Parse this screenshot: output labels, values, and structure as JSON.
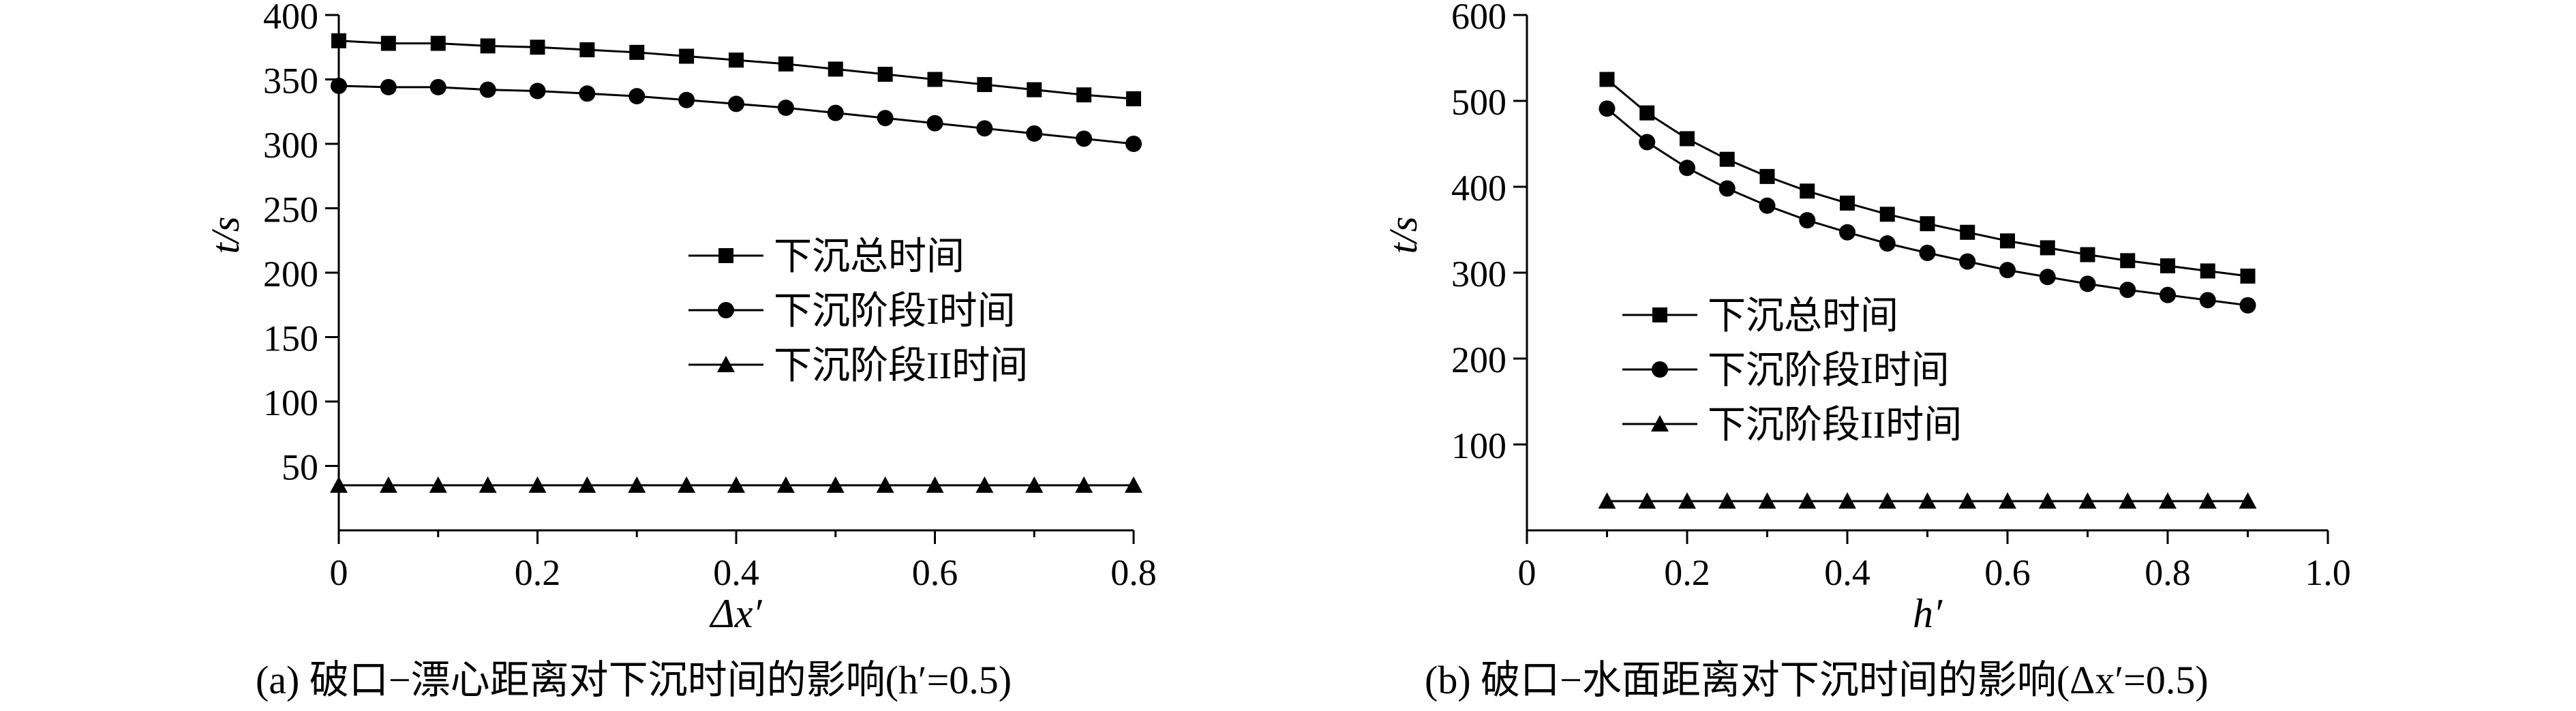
{
  "chart_data": [
    {
      "type": "line",
      "panel": "a",
      "xlabel": "Δx′",
      "ylabel": "t/s",
      "xlim": [
        0,
        0.8
      ],
      "ylim": [
        0,
        400
      ],
      "xticks": [
        0,
        0.2,
        0.4,
        0.6,
        0.8
      ],
      "xtick_labels": [
        "0",
        "0.2",
        "0.4",
        "0.6",
        "0.8"
      ],
      "yticks": [
        50,
        100,
        150,
        200,
        250,
        300,
        350,
        400
      ],
      "ytick_labels": [
        "50",
        "100",
        "150",
        "200",
        "250",
        "300",
        "350",
        "400"
      ],
      "grid": false,
      "legend_position": "center-right",
      "x": [
        0,
        0.05,
        0.1,
        0.15,
        0.2,
        0.25,
        0.3,
        0.35,
        0.4,
        0.45,
        0.5,
        0.55,
        0.6,
        0.65,
        0.7,
        0.75,
        0.8
      ],
      "series": [
        {
          "name": "下沉总时间",
          "marker": "square",
          "values": [
            380,
            378,
            378,
            376,
            375,
            373,
            371,
            368,
            365,
            362,
            358,
            354,
            350,
            346,
            342,
            338,
            335
          ]
        },
        {
          "name": "下沉阶段I时间",
          "marker": "circle",
          "values": [
            345,
            344,
            344,
            342,
            341,
            339,
            337,
            334,
            331,
            328,
            324,
            320,
            316,
            312,
            308,
            304,
            300
          ]
        },
        {
          "name": "下沉阶段II时间",
          "marker": "triangle",
          "values": [
            35,
            35,
            35,
            35,
            35,
            35,
            35,
            35,
            35,
            35,
            35,
            35,
            35,
            35,
            35,
            35,
            35
          ]
        }
      ],
      "caption": "(a) 破口−漂心距离对下沉时间的影响(h′=0.5)"
    },
    {
      "type": "line",
      "panel": "b",
      "xlabel": "h′",
      "ylabel": "t/s",
      "xlim": [
        0,
        1.0
      ],
      "ylim": [
        0,
        600
      ],
      "xticks": [
        0,
        0.2,
        0.4,
        0.6,
        0.8,
        1.0
      ],
      "xtick_labels": [
        "0",
        "0.2",
        "0.4",
        "0.6",
        "0.8",
        "1.0"
      ],
      "yticks": [
        100,
        200,
        300,
        400,
        500,
        600
      ],
      "ytick_labels": [
        "100",
        "200",
        "300",
        "400",
        "500",
        "600"
      ],
      "grid": false,
      "legend_position": "lower-left",
      "x": [
        0.1,
        0.15,
        0.2,
        0.25,
        0.3,
        0.35,
        0.4,
        0.45,
        0.5,
        0.55,
        0.6,
        0.65,
        0.7,
        0.75,
        0.8,
        0.85,
        0.9
      ],
      "series": [
        {
          "name": "下沉总时间",
          "marker": "square",
          "values": [
            525,
            486,
            456,
            432,
            412,
            395,
            381,
            368,
            357,
            347,
            337,
            329,
            321,
            314,
            308,
            302,
            296
          ]
        },
        {
          "name": "下沉阶段I时间",
          "marker": "circle",
          "values": [
            491,
            452,
            422,
            398,
            378,
            361,
            347,
            334,
            323,
            313,
            303,
            295,
            287,
            280,
            274,
            268,
            262
          ]
        },
        {
          "name": "下沉阶段II时间",
          "marker": "triangle",
          "values": [
            34,
            34,
            34,
            34,
            34,
            34,
            34,
            34,
            34,
            34,
            34,
            34,
            34,
            34,
            34,
            34,
            34
          ]
        }
      ],
      "caption": "(b) 破口−水面距离对下沉时间的影响(Δx′=0.5)"
    }
  ]
}
